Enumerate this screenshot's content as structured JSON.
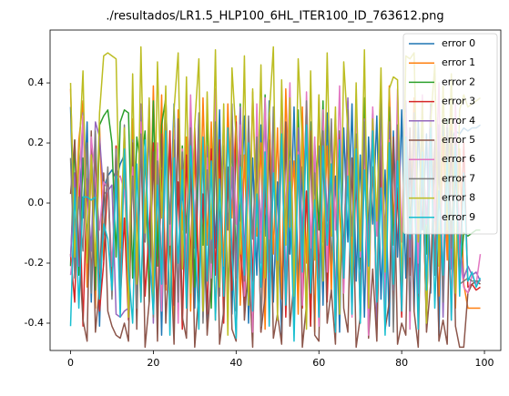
{
  "chart_data": {
    "type": "line",
    "title": "./resultados/LR1.5_HLP100_6HL_ITER100_ID_763612.png",
    "x": [
      0,
      1,
      2,
      3,
      4,
      5,
      6,
      7,
      8,
      9,
      10,
      11,
      12,
      13,
      14,
      15,
      16,
      17,
      18,
      19,
      20,
      21,
      22,
      23,
      24,
      25,
      26,
      27,
      28,
      29,
      30,
      31,
      32,
      33,
      34,
      35,
      36,
      37,
      38,
      39,
      40,
      41,
      42,
      43,
      44,
      45,
      46,
      47,
      48,
      49,
      50,
      51,
      52,
      53,
      54,
      55,
      56,
      57,
      58,
      59,
      60,
      61,
      62,
      63,
      64,
      65,
      66,
      67,
      68,
      69,
      70,
      71,
      72,
      73,
      74,
      75,
      76,
      77,
      78,
      79,
      80,
      81,
      82,
      83,
      84,
      85,
      86,
      87,
      88,
      89,
      90,
      91,
      92,
      93,
      94,
      95,
      96,
      97,
      98,
      99
    ],
    "xlim": [
      -4.95,
      103.95
    ],
    "xticks": [
      0,
      20,
      40,
      60,
      80,
      100
    ],
    "ylim": [
      -0.491,
      0.576
    ],
    "yticks": [
      -0.4,
      -0.2,
      {
        "value": 0,
        "label": "0.0"
      },
      0.2,
      0.4
    ],
    "legend": "upper right",
    "series": [
      {
        "name": "error 0",
        "color": "#1f77b4",
        "values": [
          0.32,
          -0.21,
          0.18,
          -0.05,
          0.27,
          -0.33,
          0.12,
          -0.41,
          0.05,
          0.09,
          0.11,
          0.08,
          0.13,
          0.16,
          -0.22,
          0.25,
          -0.38,
          0.19,
          -0.12,
          0.3,
          -0.27,
          0.14,
          -0.44,
          0.22,
          -0.08,
          0.33,
          -0.31,
          0.06,
          -0.19,
          0.28,
          -0.35,
          0.17,
          -0.02,
          -0.42,
          0.24,
          -0.15,
          0.31,
          -0.29,
          0.1,
          -0.37,
          0.21,
          -0.06,
          0.29,
          -0.4,
          0.15,
          -0.24,
          0.26,
          -0.11,
          0.34,
          -0.33,
          0.07,
          -0.45,
          0.23,
          -0.17,
          0.32,
          -0.28,
          0.12,
          -0.39,
          0.27,
          -0.04,
          0.19,
          -0.34,
          0.3,
          -0.21,
          0.09,
          -0.43,
          0.25,
          -0.13,
          0.33,
          -0.26,
          0.16,
          -0.38,
          0.22,
          -0.07,
          0.29,
          -0.32,
          0.11,
          -0.41,
          0.24,
          -0.18,
          0.31,
          -0.25,
          0.14,
          -0.36,
          0.27,
          -0.09,
          0.23,
          -0.3,
          0.18,
          -0.44,
          0.26,
          -0.14,
          0.21,
          0.24,
          0.23,
          0.25,
          0.24,
          0.25,
          0.25,
          0.26
        ]
      },
      {
        "name": "error 1",
        "color": "#ff7f0e",
        "values": [
          0.38,
          -0.12,
          0.21,
          0.34,
          -0.28,
          0.15,
          -0.35,
          0.26,
          -0.19,
          0.08,
          -0.31,
          0.19,
          -0.24,
          0.12,
          -0.38,
          0.28,
          -0.06,
          -0.33,
          0.17,
          -0.22,
          0.39,
          -0.15,
          0.36,
          -0.29,
          0.24,
          -0.41,
          0.31,
          -0.09,
          0.22,
          -0.36,
          0.18,
          -0.27,
          0.35,
          -0.14,
          0.27,
          -0.39,
          0.13,
          -0.21,
          0.33,
          -0.05,
          0.29,
          -0.34,
          0.16,
          -0.25,
          0.37,
          -0.11,
          0.2,
          -0.42,
          0.3,
          -0.17,
          0.25,
          -0.32,
          0.38,
          -0.08,
          0.14,
          -0.37,
          0.32,
          -0.2,
          0.23,
          -0.43,
          0.36,
          -0.13,
          0.19,
          -0.3,
          0.28,
          -0.04,
          -0.26,
          0.34,
          -0.18,
          0.21,
          -0.4,
          0.31,
          -0.1,
          0.26,
          -0.35,
          0.17,
          -0.23,
          0.39,
          -0.07,
          0.24,
          -0.33,
          0.29,
          -0.16,
          0.35,
          -0.28,
          0.12,
          -0.39,
          0.27,
          -0.02,
          -0.31,
          0.22,
          -0.19,
          0.33,
          -0.35,
          0.18,
          -0.27,
          -0.35,
          -0.35,
          -0.35,
          -0.35
        ]
      },
      {
        "name": "error 2",
        "color": "#2ca02c",
        "values": [
          -0.21,
          0.21,
          -0.24,
          0.15,
          -0.12,
          0.18,
          -0.29,
          0.26,
          0.29,
          0.31,
          0.2,
          -0.18,
          0.27,
          0.31,
          0.3,
          -0.25,
          0.22,
          0.12,
          0.24,
          -0.33,
          0.34,
          -0.21,
          0.26,
          0.35,
          -0.16,
          0.29,
          -0.37,
          0.19,
          -0.1,
          0.32,
          -0.28,
          0.23,
          -0.14,
          0.3,
          -0.35,
          0.17,
          -0.08,
          0.27,
          -0.31,
          0.21,
          -0.19,
          0.33,
          -0.26,
          0.14,
          -0.39,
          0.25,
          -0.12,
          0.36,
          -0.23,
          0.18,
          -0.34,
          0.28,
          -0.06,
          0.22,
          -0.3,
          0.31,
          -0.15,
          0.26,
          -0.41,
          0.2,
          -0.09,
          0.34,
          -0.27,
          0.13,
          -0.36,
          0.24,
          -0.18,
          0.29,
          -0.32,
          0.16,
          -0.22,
          0.35,
          -0.11,
          0.27,
          -0.38,
          0.19,
          -0.25,
          0.32,
          -0.14,
          0.23,
          -0.29,
          0.3,
          -0.07,
          0.21,
          -0.34,
          0.26,
          -0.17,
          0.33,
          -0.24,
          0.15,
          -0.31,
          0.28,
          -0.12,
          0.2,
          -0.26,
          -0.1,
          -0.11,
          -0.1,
          -0.09,
          -0.09
        ]
      },
      {
        "name": "error 3",
        "color": "#d62728",
        "values": [
          -0.17,
          -0.33,
          0.12,
          -0.41,
          0.08,
          -0.25,
          0.17,
          -0.36,
          -0.2,
          0.1,
          -0.28,
          0.19,
          -0.33,
          -0.05,
          -0.39,
          0.14,
          -0.22,
          0.22,
          -0.31,
          -0.09,
          0.2,
          -0.38,
          0.11,
          -0.27,
          0.24,
          -0.34,
          0.07,
          -0.42,
          0.16,
          -0.19,
          0.25,
          -0.3,
          0.03,
          -0.37,
          0.18,
          -0.24,
          0.21,
          -0.4,
          0.09,
          -0.29,
          0.27,
          -0.15,
          -0.35,
          0.13,
          -0.26,
          0.23,
          -0.43,
          0.06,
          -0.32,
          0.19,
          -0.21,
          0.26,
          -0.38,
          0.1,
          -0.28,
          0.22,
          -0.35,
          0.04,
          -0.41,
          0.17,
          -0.25,
          0.28,
          -0.33,
          0.12,
          -0.39,
          0.2,
          -0.23,
          0.25,
          -0.3,
          0.08,
          -0.36,
          0.21,
          -0.18,
          0.27,
          -0.42,
          0.14,
          -0.27,
          0.23,
          -0.34,
          0.05,
          -0.38,
          0.19,
          -0.24,
          0.26,
          -0.31,
          0.11,
          -0.4,
          0.24,
          -0.2,
          0.16,
          -0.29,
          0.22,
          -0.35,
          0.13,
          -0.26,
          0.2,
          -0.28,
          -0.27,
          -0.29,
          -0.28
        ]
      },
      {
        "name": "error 4",
        "color": "#9467bd",
        "values": [
          -0.18,
          0.1,
          -0.21,
          0.3,
          0.05,
          -0.16,
          0.27,
          0.22,
          0.03,
          0.04,
          0.06,
          -0.37,
          -0.38,
          -0.36,
          -0.35,
          0.21,
          -0.29,
          0.33,
          -0.13,
          0.25,
          -0.4,
          0.18,
          -0.24,
          0.35,
          -0.11,
          0.28,
          -0.33,
          0.15,
          -0.27,
          0.31,
          -0.08,
          0.23,
          -0.38,
          0.19,
          -0.21,
          0.34,
          -0.14,
          0.26,
          -0.36,
          0.12,
          -0.25,
          0.32,
          -0.19,
          0.27,
          -0.42,
          0.17,
          -0.09,
          0.3,
          -0.31,
          0.22,
          -0.16,
          0.36,
          -0.28,
          0.14,
          -0.37,
          0.25,
          -0.12,
          0.33,
          -0.23,
          0.19,
          -0.39,
          0.29,
          -0.06,
          0.24,
          -0.34,
          0.18,
          -0.2,
          0.35,
          -0.26,
          0.13,
          -0.32,
          0.28,
          -0.15,
          0.31,
          -0.41,
          0.21,
          -0.1,
          0.27,
          -0.29,
          0.16,
          -0.35,
          0.34,
          -0.18,
          0.23,
          -0.3,
          0.2,
          -0.07,
          0.32,
          -0.24,
          0.26,
          -0.38,
          0.15,
          -0.22,
          0.29,
          -0.13,
          -0.25,
          -0.21,
          -0.24,
          -0.23,
          -0.26
        ]
      },
      {
        "name": "error 5",
        "color": "#8c564b",
        "values": [
          0.03,
          0.21,
          -0.15,
          -0.39,
          -0.46,
          0.24,
          -0.43,
          -0.28,
          0.1,
          -0.36,
          -0.41,
          -0.44,
          -0.45,
          -0.4,
          -0.46,
          0.2,
          -0.42,
          0.26,
          -0.48,
          -0.33,
          0.17,
          -0.46,
          0.23,
          -0.4,
          -0.12,
          -0.47,
          0.28,
          -0.38,
          -0.45,
          0.14,
          -0.48,
          -0.3,
          0.19,
          -0.44,
          -0.25,
          0.22,
          -0.47,
          -0.36,
          0.12,
          -0.42,
          -0.46,
          0.25,
          -0.39,
          -0.2,
          -0.48,
          0.18,
          -0.43,
          -0.31,
          0.21,
          -0.45,
          -0.37,
          -0.47,
          0.27,
          -0.41,
          -0.26,
          0.16,
          -0.48,
          -0.34,
          0.24,
          -0.44,
          -0.46,
          0.2,
          -0.4,
          -0.29,
          -0.47,
          0.23,
          -0.35,
          -0.43,
          0.15,
          -0.48,
          -0.38,
          0.26,
          -0.45,
          -0.22,
          -0.46,
          0.19,
          -0.42,
          -0.33,
          0.22,
          -0.47,
          -0.4,
          -0.44,
          0.25,
          -0.36,
          -0.48,
          0.17,
          -0.43,
          -0.27,
          0.21,
          -0.46,
          -0.39,
          -0.47,
          0.24,
          -0.41,
          -0.48,
          -0.48,
          -0.3,
          -0.27,
          -0.26,
          -0.27
        ]
      },
      {
        "name": "error 6",
        "color": "#e377c2",
        "values": [
          -0.24,
          -0.12,
          0.06,
          0.29,
          -0.18,
          0.22,
          0.08,
          -0.09,
          0.07,
          0.05,
          -0.21,
          0.08,
          0.09,
          0.04,
          -0.16,
          0.12,
          -0.3,
          0.27,
          -0.05,
          0.34,
          -0.27,
          0.2,
          -0.36,
          0.31,
          -0.14,
          0.25,
          -0.4,
          0.18,
          -0.22,
          0.36,
          -0.1,
          0.28,
          -0.33,
          0.15,
          -0.25,
          0.38,
          -0.17,
          0.23,
          -0.39,
          0.3,
          -0.07,
          0.26,
          -0.31,
          0.19,
          -0.43,
          0.33,
          -0.2,
          0.35,
          -0.12,
          0.24,
          -0.37,
          0.29,
          -0.04,
          0.4,
          -0.26,
          0.17,
          -0.34,
          0.37,
          -0.15,
          0.22,
          -0.41,
          0.31,
          -0.23,
          0.27,
          -0.09,
          0.39,
          -0.3,
          0.14,
          -0.38,
          0.34,
          -0.18,
          0.25,
          -0.44,
          0.32,
          -0.11,
          0.28,
          -0.35,
          0.21,
          -0.27,
          0.38,
          -0.13,
          0.3,
          -0.42,
          0.23,
          -0.2,
          0.36,
          -0.33,
          0.16,
          -0.06,
          0.4,
          -0.29,
          0.26,
          -0.39,
          0.33,
          -0.16,
          -0.28,
          -0.3,
          -0.24,
          -0.27,
          -0.17
        ]
      },
      {
        "name": "error 7",
        "color": "#7f7f7f",
        "values": [
          0.15,
          -0.25,
          0.02,
          -0.16,
          0.2,
          -0.3,
          0.24,
          -0.22,
          -0.1,
          0.12,
          -0.32,
          0.18,
          -0.28,
          0.26,
          -0.19,
          0.09,
          -0.35,
          0.23,
          -0.13,
          0.28,
          -0.38,
          0.14,
          -0.24,
          0.31,
          -0.07,
          0.21,
          -0.33,
          0.17,
          -0.27,
          0.25,
          -0.15,
          0.3,
          -0.4,
          0.11,
          -0.2,
          0.27,
          -0.31,
          0.19,
          -0.09,
          0.33,
          -0.36,
          0.16,
          -0.26,
          0.29,
          -0.12,
          0.22,
          -0.41,
          0.13,
          -0.23,
          0.32,
          -0.3,
          0.2,
          -0.08,
          0.26,
          -0.37,
          0.15,
          -0.19,
          0.34,
          -0.29,
          0.1,
          -0.34,
          0.24,
          -0.14,
          0.28,
          -0.42,
          0.18,
          -0.25,
          0.31,
          -0.11,
          0.23,
          -0.39,
          0.27,
          -0.21,
          0.12,
          -0.32,
          0.35,
          -0.17,
          0.2,
          -0.43,
          0.26,
          -0.28,
          0.14,
          -0.36,
          0.3,
          -0.05,
          0.22,
          -0.4,
          0.29,
          -0.24,
          0.17,
          -0.33,
          0.25,
          -0.15,
          0.21,
          -0.27,
          -0.26,
          -0.25,
          -0.26,
          -0.26,
          -0.26
        ]
      },
      {
        "name": "error 8",
        "color": "#bcbd22",
        "values": [
          0.4,
          -0.18,
          0.15,
          0.44,
          -0.2,
          0.16,
          -0.21,
          0.3,
          0.49,
          0.5,
          0.49,
          0.48,
          -0.15,
          0.25,
          -0.38,
          0.43,
          -0.27,
          0.52,
          -0.1,
          0.35,
          -0.33,
          0.47,
          -0.05,
          0.39,
          -0.41,
          0.31,
          0.5,
          -0.22,
          0.42,
          -0.3,
          0.26,
          0.48,
          -0.36,
          0.37,
          -0.12,
          0.51,
          -0.28,
          0.33,
          -0.44,
          0.45,
          0.22,
          -0.17,
          0.49,
          -0.34,
          0.38,
          -0.08,
          0.46,
          -0.25,
          0.29,
          0.52,
          -0.39,
          0.41,
          -0.14,
          0.35,
          -0.31,
          0.48,
          0.2,
          -0.42,
          0.44,
          -0.19,
          0.36,
          -0.26,
          0.5,
          -0.11,
          0.32,
          -0.37,
          0.47,
          0.24,
          -0.29,
          0.4,
          -0.16,
          0.51,
          -0.35,
          0.28,
          -0.06,
          0.45,
          -0.23,
          0.38,
          0.42,
          0.41,
          -0.32,
          0.49,
          0.48,
          0.5,
          -0.13,
          0.34,
          -0.4,
          0.27,
          0.46,
          -0.21,
          0.39,
          -0.09,
          0.43,
          -0.3,
          0.31,
          0.36,
          0.32,
          0.33,
          0.34,
          0.35
        ]
      },
      {
        "name": "error 9",
        "color": "#17becf",
        "values": [
          -0.41,
          0.05,
          -0.35,
          0.02,
          0.02,
          0.01,
          0.02,
          -0.32,
          -0.07,
          -0.12,
          -0.29,
          0.09,
          -0.38,
          0.18,
          -0.22,
          -0.4,
          0.13,
          -0.33,
          0.21,
          -0.16,
          -0.37,
          0.06,
          -0.27,
          0.24,
          -0.44,
          0.15,
          -0.2,
          0.11,
          -0.35,
          0.19,
          -0.08,
          -0.42,
          0.22,
          -0.26,
          0.14,
          -0.39,
          0.08,
          -0.31,
          0.25,
          -0.17,
          -0.45,
          0.12,
          -0.24,
          0.2,
          -0.36,
          0.03,
          -0.28,
          0.17,
          -0.41,
          0.1,
          -0.19,
          0.23,
          -0.34,
          0.07,
          -0.46,
          0.16,
          -0.23,
          0.26,
          -0.3,
          0.01,
          -0.38,
          0.19,
          -0.14,
          0.13,
          -0.43,
          0.21,
          -0.25,
          0.09,
          -0.37,
          0.18,
          -0.4,
          0.11,
          -0.21,
          0.24,
          -0.33,
          0.05,
          -0.44,
          0.2,
          -0.27,
          0.14,
          -0.36,
          0.22,
          -0.12,
          0.08,
          -0.42,
          0.17,
          -0.29,
          0.25,
          -0.35,
          0.04,
          -0.24,
          0.15,
          -0.39,
          0.19,
          -0.31,
          0.1,
          -0.26,
          -0.23,
          -0.28,
          -0.25
        ]
      }
    ]
  }
}
